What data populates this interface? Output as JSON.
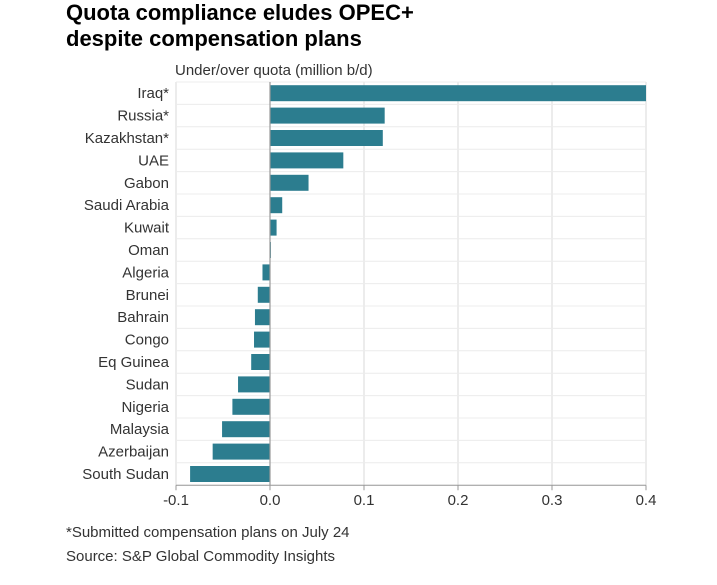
{
  "title_line1": "Quota compliance eludes OPEC+",
  "title_line2": "despite compensation plans",
  "axis_caption": "Under/over quota (million b/d)",
  "footnote": "*Submitted compensation plans on July 24",
  "source": "Source: S&P Global Commodity Insights",
  "colors": {
    "bar": "#2c7d8f",
    "grid": "#d9d9d9",
    "axis": "#999999"
  },
  "chart_data": {
    "type": "bar",
    "orientation": "horizontal",
    "title": "Quota compliance eludes OPEC+ despite compensation plans",
    "xlabel": "Under/over quota (million b/d)",
    "ylabel": "",
    "xlim": [
      -0.1,
      0.4
    ],
    "xticks": [
      -0.1,
      0.0,
      0.1,
      0.2,
      0.3,
      0.4
    ],
    "xtick_labels": [
      "-0.1",
      "0.0",
      "0.1",
      "0.2",
      "0.3",
      "0.4"
    ],
    "grid": true,
    "categories": [
      "Iraq*",
      "Russia*",
      "Kazakhstan*",
      "UAE",
      "Gabon",
      "Saudi Arabia",
      "Kuwait",
      "Oman",
      "Algeria",
      "Brunei",
      "Bahrain",
      "Congo",
      "Eq Guinea",
      "Sudan",
      "Nigeria",
      "Malaysia",
      "Azerbaijan",
      "South Sudan"
    ],
    "values": [
      0.4,
      0.122,
      0.12,
      0.078,
      0.041,
      0.013,
      0.007,
      0.001,
      -0.008,
      -0.013,
      -0.016,
      -0.017,
      -0.02,
      -0.034,
      -0.04,
      -0.051,
      -0.061,
      -0.085
    ]
  }
}
